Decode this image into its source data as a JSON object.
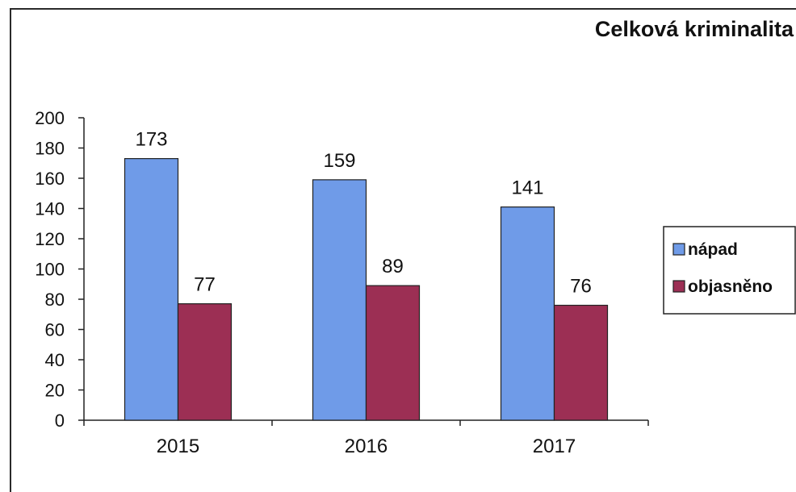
{
  "chart_data": {
    "type": "bar",
    "title": "Celková kriminalita",
    "categories": [
      "2015",
      "2016",
      "2017"
    ],
    "series": [
      {
        "name": "nápad",
        "values": [
          173,
          159,
          141
        ],
        "color": "#6f9be8"
      },
      {
        "name": "objasněno",
        "values": [
          77,
          89,
          76
        ],
        "color": "#9c2f54"
      }
    ],
    "yticks": [
      "0",
      "20",
      "40",
      "60",
      "80",
      "100",
      "120",
      "140",
      "160",
      "180",
      "200"
    ],
    "ylim": [
      0,
      200
    ],
    "xlabel": "",
    "ylabel": "",
    "legend_position": "right",
    "grid": false
  }
}
